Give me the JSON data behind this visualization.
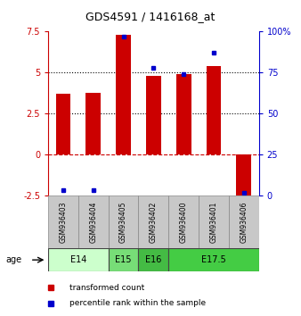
{
  "title": "GDS4591 / 1416168_at",
  "samples": [
    "GSM936403",
    "GSM936404",
    "GSM936405",
    "GSM936402",
    "GSM936400",
    "GSM936401",
    "GSM936406"
  ],
  "transformed_count": [
    3.7,
    3.75,
    7.3,
    4.8,
    4.9,
    5.4,
    -2.6
  ],
  "percentile_rank": [
    3.6,
    3.55,
    97.0,
    78.0,
    74.0,
    87.0,
    2.0
  ],
  "age_groups": [
    {
      "label": "E14",
      "start": 0,
      "end": 2,
      "color": "#ccffcc"
    },
    {
      "label": "E15",
      "start": 2,
      "end": 3,
      "color": "#77dd77"
    },
    {
      "label": "E16",
      "start": 3,
      "end": 4,
      "color": "#44bb44"
    },
    {
      "label": "E17.5",
      "start": 4,
      "end": 7,
      "color": "#44cc44"
    }
  ],
  "ylim_left": [
    -2.5,
    7.5
  ],
  "ylim_right": [
    0,
    100
  ],
  "yticks_left": [
    -2.5,
    0,
    2.5,
    5,
    7.5
  ],
  "ytick_labels_left": [
    "-2.5",
    "0",
    "2.5",
    "5",
    "7.5"
  ],
  "yticks_right": [
    0,
    25,
    50,
    75,
    100
  ],
  "ytick_labels_right": [
    "0",
    "25",
    "50",
    "75",
    "100%"
  ],
  "hlines": [
    {
      "y": 0,
      "style": "dashed",
      "color": "#cc0000",
      "lw": 0.8
    },
    {
      "y": 2.5,
      "style": "dotted",
      "color": "#000000",
      "lw": 0.8
    },
    {
      "y": 5,
      "style": "dotted",
      "color": "#000000",
      "lw": 0.8
    }
  ],
  "bar_color": "#cc0000",
  "dot_color": "#0000cc",
  "bar_width": 0.5,
  "legend_labels": [
    "transformed count",
    "percentile rank within the sample"
  ],
  "legend_colors": [
    "#cc0000",
    "#0000cc"
  ]
}
